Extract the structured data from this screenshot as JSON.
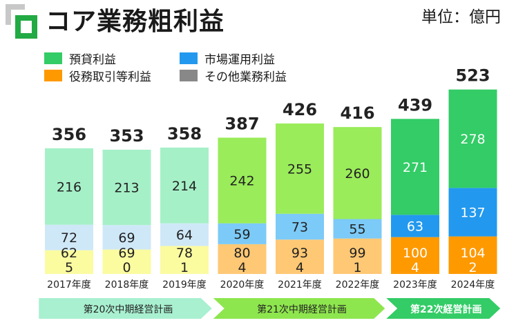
{
  "header": {
    "title": "コア業務粗利益",
    "unit": "単位：億円"
  },
  "legend": [
    {
      "name": "預貸利益",
      "color": "#33cc66"
    },
    {
      "name": "市場運用利益",
      "color": "#2299ee"
    },
    {
      "name": "役務取引等利益",
      "color": "#ff9900"
    },
    {
      "name": "その他業務利益",
      "color": "#888888"
    }
  ],
  "chart_data": {
    "type": "bar",
    "stacked": true,
    "categories": [
      "2017年度",
      "2018年度",
      "2019年度",
      "2020年度",
      "2021年度",
      "2022年度",
      "2023年度",
      "2024年度"
    ],
    "totals": [
      356,
      353,
      358,
      387,
      426,
      416,
      439,
      523
    ],
    "series": [
      {
        "name": "その他業務利益",
        "values": [
          5,
          0,
          1,
          4,
          4,
          1,
          4,
          2
        ]
      },
      {
        "name": "役務取引等利益",
        "values": [
          62,
          69,
          78,
          80,
          93,
          99,
          100,
          104
        ]
      },
      {
        "name": "市場運用利益",
        "values": [
          72,
          69,
          64,
          59,
          73,
          55,
          63,
          137
        ]
      },
      {
        "name": "預貸利益",
        "values": [
          216,
          213,
          214,
          242,
          255,
          260,
          271,
          278
        ]
      }
    ],
    "plan_periods": [
      {
        "label": "第20次中期経営計画",
        "from": 0,
        "to": 2
      },
      {
        "label": "第21次中期経営計画",
        "from": 3,
        "to": 5
      },
      {
        "label": "第22次経営計画",
        "from": 6,
        "to": 7
      }
    ],
    "ylim": [
      0,
      560
    ],
    "grid": false,
    "legend_position": "top-left"
  }
}
